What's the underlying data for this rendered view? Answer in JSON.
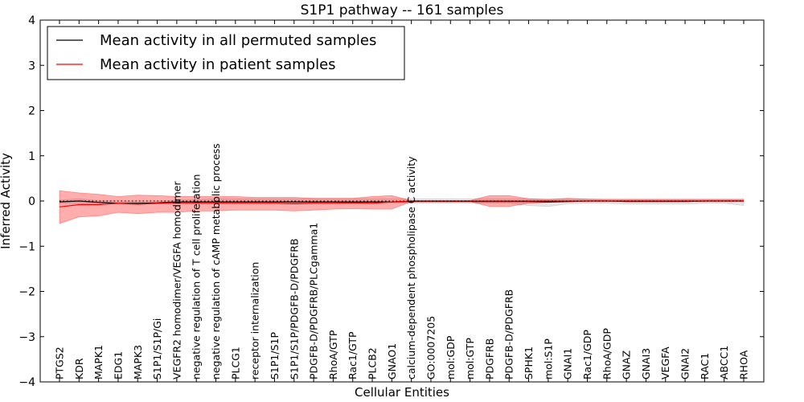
{
  "chart_data": {
    "type": "line",
    "title": "S1P1 pathway -- 161 samples",
    "xlabel": "Cellular Entities",
    "ylabel": "Inferred Activity",
    "ylim": [
      -4,
      4
    ],
    "yticks": [
      -4,
      -3,
      -2,
      -1,
      0,
      1,
      2,
      3,
      4
    ],
    "ytick_labels": [
      "−4",
      "−3",
      "−2",
      "−1",
      "0",
      "1",
      "2",
      "3",
      "4"
    ],
    "legend": {
      "position": "top-left",
      "entries": [
        {
          "label": "Mean activity in all permuted samples",
          "color": "#000000"
        },
        {
          "label": "Mean activity in patient samples",
          "color": "#ff0000"
        }
      ]
    },
    "categories": [
      "PTGS2",
      "KDR",
      "MAPK1",
      "EDG1",
      "MAPK3",
      "S1P1/S1P/Gi",
      "VEGFR2 homodimer/VEGFA homodimer",
      "negative regulation of T cell proliferation",
      "negative regulation of cAMP metabolic process",
      "PLCG1",
      "receptor internalization",
      "S1P1/S1P",
      "S1P1/S1P/PDGFB-D/PDGFRB",
      "PDGFB-D/PDGFRB/PLCgamma1",
      "RhoA/GTP",
      "Rac1/GTP",
      "PLCB2",
      "GNAO1",
      "calcium-dependent phospholipase C activity",
      "GO:0007205",
      "mol:GDP",
      "mol:GTP",
      "PDGFRB",
      "PDGFB-D/PDGFRB",
      "SPHK1",
      "mol:S1P",
      "GNAI1",
      "Rac1/GDP",
      "RhoA/GDP",
      "GNAZ",
      "GNAI3",
      "VEGFA",
      "GNAI2",
      "RAC1",
      "ABCC1",
      "RHOA"
    ],
    "series": [
      {
        "name": "Mean activity in all permuted samples",
        "color": "#000000",
        "values": [
          -0.02,
          0.0,
          -0.03,
          -0.05,
          -0.05,
          -0.04,
          -0.02,
          -0.02,
          -0.02,
          -0.02,
          -0.02,
          -0.02,
          -0.02,
          -0.02,
          -0.02,
          -0.02,
          -0.02,
          -0.02,
          -0.01,
          -0.01,
          -0.01,
          -0.01,
          -0.01,
          -0.01,
          -0.01,
          -0.02,
          -0.01,
          0.0,
          0.0,
          -0.01,
          -0.01,
          -0.01,
          -0.01,
          0.0,
          0.0,
          0.0
        ],
        "band_low": [
          -0.06,
          -0.05,
          -0.06,
          -0.08,
          -0.08,
          -0.07,
          -0.05,
          -0.05,
          -0.05,
          -0.05,
          -0.05,
          -0.05,
          -0.05,
          -0.05,
          -0.05,
          -0.05,
          -0.05,
          -0.05,
          -0.05,
          -0.05,
          -0.05,
          -0.05,
          -0.05,
          -0.05,
          -0.1,
          -0.12,
          -0.06,
          -0.05,
          -0.05,
          -0.07,
          -0.07,
          -0.07,
          -0.07,
          -0.05,
          -0.05,
          -0.1
        ],
        "band_high": [
          0.02,
          0.05,
          0.01,
          0.0,
          0.0,
          0.0,
          0.02,
          0.03,
          0.05,
          0.05,
          0.05,
          0.05,
          0.05,
          0.05,
          0.05,
          0.05,
          0.05,
          0.05,
          0.05,
          0.05,
          0.05,
          0.05,
          0.05,
          0.05,
          0.05,
          0.05,
          0.05,
          0.05,
          0.05,
          0.05,
          0.05,
          0.05,
          0.05,
          0.05,
          0.05,
          0.05
        ]
      },
      {
        "name": "Mean activity in patient samples",
        "color": "#ff0000",
        "values": [
          -0.13,
          -0.08,
          -0.08,
          -0.05,
          -0.07,
          -0.05,
          -0.05,
          -0.05,
          -0.05,
          -0.05,
          -0.05,
          -0.05,
          -0.06,
          -0.05,
          -0.05,
          -0.04,
          -0.05,
          -0.02,
          0.0,
          0.0,
          0.0,
          0.0,
          0.0,
          0.0,
          0.0,
          0.0,
          0.0,
          0.0,
          0.0,
          0.0,
          0.0,
          0.0,
          0.0,
          0.0,
          0.0,
          0.0
        ],
        "band_low": [
          -0.5,
          -0.35,
          -0.33,
          -0.25,
          -0.28,
          -0.25,
          -0.25,
          -0.22,
          -0.22,
          -0.2,
          -0.2,
          -0.2,
          -0.22,
          -0.2,
          -0.18,
          -0.17,
          -0.18,
          -0.18,
          -0.01,
          -0.01,
          -0.01,
          -0.01,
          -0.12,
          -0.12,
          -0.05,
          -0.03,
          -0.02,
          -0.01,
          -0.01,
          -0.01,
          -0.01,
          -0.01,
          -0.01,
          -0.01,
          -0.01,
          -0.01
        ],
        "band_high": [
          0.23,
          0.18,
          0.15,
          0.1,
          0.13,
          0.12,
          0.1,
          0.1,
          0.1,
          0.1,
          0.08,
          0.08,
          0.08,
          0.06,
          0.06,
          0.06,
          0.1,
          0.12,
          0.01,
          0.01,
          0.01,
          0.01,
          0.12,
          0.12,
          0.05,
          0.03,
          0.06,
          0.04,
          0.03,
          0.03,
          0.03,
          0.03,
          0.03,
          0.03,
          0.03,
          0.03
        ]
      }
    ],
    "reference_line": {
      "y": 0,
      "style": "dotted"
    }
  }
}
